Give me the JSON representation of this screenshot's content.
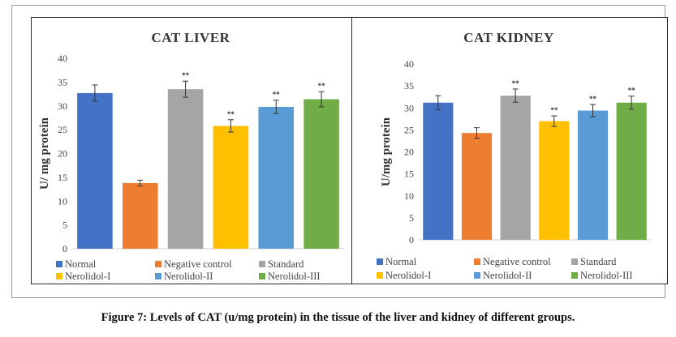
{
  "caption": "Figure 7: Levels of CAT (u/mg protein) in the tissue of the liver and kidney of different groups.",
  "colors": {
    "Normal": "#4472C4",
    "Negative control": "#ED7D31",
    "Standard": "#A5A5A5",
    "Nerolidol-I": "#FFC000",
    "Nerolidol-II": "#5B9BD5",
    "Nerolidol-III": "#70AD47"
  },
  "chart_data": [
    {
      "type": "bar",
      "title": "CAT LIVER",
      "ylabel": "U/ mg protein",
      "xlabel": "",
      "ylim": [
        0,
        40
      ],
      "yticks": [
        0,
        5,
        10,
        15,
        20,
        25,
        30,
        35,
        40
      ],
      "grid": false,
      "legend_position": "bottom",
      "categories": [
        "Normal",
        "Negative control",
        "Standard",
        "Nerolidol-I",
        "Nerolidol-II",
        "Nerolidol-III"
      ],
      "values": [
        32.7,
        13.8,
        33.5,
        25.8,
        29.8,
        31.4
      ],
      "errors": [
        1.7,
        0.6,
        1.7,
        1.3,
        1.4,
        1.6
      ],
      "significance": [
        "",
        "",
        "**",
        "**",
        "**",
        "**"
      ]
    },
    {
      "type": "bar",
      "title": "CAT KIDNEY",
      "ylabel": "U/mg protein",
      "xlabel": "",
      "ylim": [
        0,
        40
      ],
      "yticks": [
        0,
        5,
        10,
        15,
        20,
        25,
        30,
        35,
        40
      ],
      "grid": false,
      "legend_position": "bottom",
      "categories": [
        "Normal",
        "Negative control",
        "Standard",
        "Nerolidol-I",
        "Nerolidol-II",
        "Nerolidol-III"
      ],
      "values": [
        31.2,
        24.3,
        32.8,
        27.0,
        29.4,
        31.2
      ],
      "errors": [
        1.6,
        1.2,
        1.5,
        1.2,
        1.4,
        1.5
      ],
      "significance": [
        "",
        "",
        "**",
        "**",
        "**",
        "**"
      ]
    }
  ]
}
